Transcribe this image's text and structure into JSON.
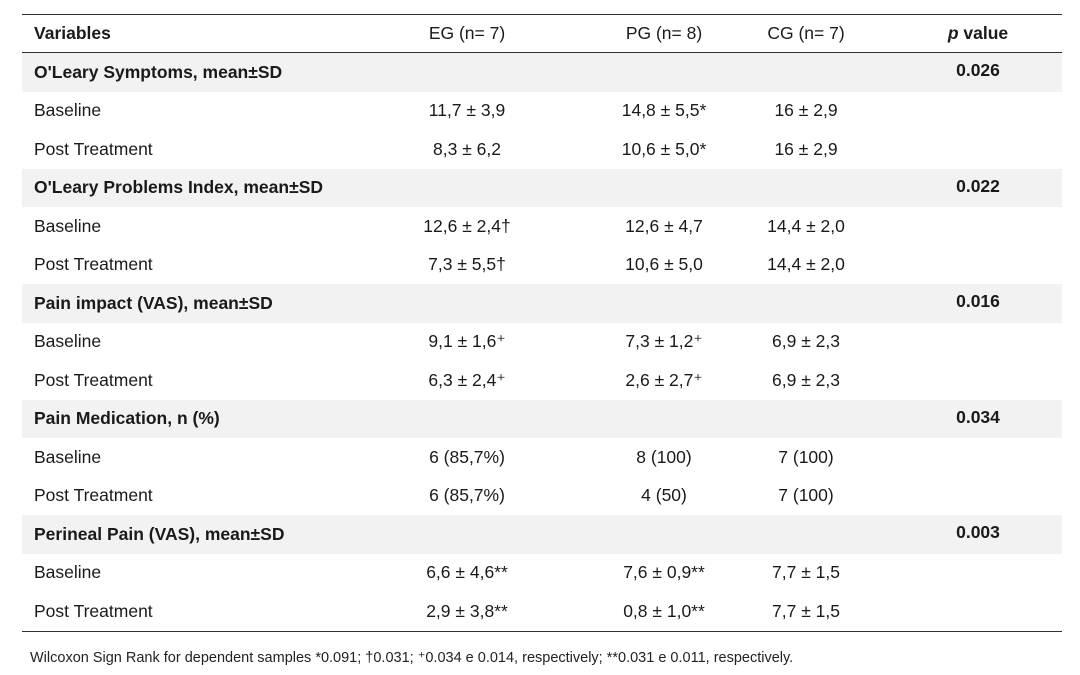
{
  "table": {
    "headers": {
      "variables": "Variables",
      "eg": "EG (n= 7)",
      "pg": "PG (n= 8)",
      "cg": "CG (n= 7)",
      "p_italic": "p",
      "p_rest": " value"
    },
    "sections": [
      {
        "title": "O'Leary Symptoms,  mean±SD",
        "p": "0.026",
        "rows": [
          {
            "label": "Baseline",
            "eg": "11,7 ± 3,9",
            "pg": "14,8 ± 5,5*",
            "cg": "16 ± 2,9"
          },
          {
            "label": "Post Treatment",
            "eg": "8,3 ± 6,2",
            "pg": "10,6 ± 5,0*",
            "cg": "16 ± 2,9"
          }
        ]
      },
      {
        "title": "O'Leary Problems Index, mean±SD",
        "p": "0.022",
        "rows": [
          {
            "label": "Baseline",
            "eg": "12,6 ± 2,4†",
            "pg": "12,6 ± 4,7",
            "cg": "14,4 ± 2,0"
          },
          {
            "label": "Post Treatment",
            "eg": "7,3 ± 5,5†",
            "pg": "10,6 ± 5,0",
            "cg": "14,4 ± 2,0"
          }
        ]
      },
      {
        "title": "Pain impact (VAS),  mean±SD",
        "p": "0.016",
        "rows": [
          {
            "label": "Baseline",
            "eg": "9,1 ± 1,6⁺",
            "pg": "7,3 ± 1,2⁺",
            "cg": "6,9 ± 2,3"
          },
          {
            "label": "Post Treatment",
            "eg": "6,3 ± 2,4⁺",
            "pg": "2,6 ± 2,7⁺",
            "cg": "6,9 ± 2,3"
          }
        ]
      },
      {
        "title": "Pain Medication, n (%)",
        "p": "0.034",
        "rows": [
          {
            "label": "Baseline",
            "eg": "6 (85,7%)",
            "pg": "8 (100)",
            "cg": "7 (100)"
          },
          {
            "label": "Post Treatment",
            "eg": "6 (85,7%)",
            "pg": "4 (50)",
            "cg": "7 (100)"
          }
        ]
      },
      {
        "title": "Perineal Pain (VAS), mean±SD",
        "p": "0.003",
        "rows": [
          {
            "label": "Baseline",
            "eg": "6,6 ± 4,6**",
            "pg": "7,6 ± 0,9**",
            "cg": "7,7 ± 1,5"
          },
          {
            "label": "Post Treatment",
            "eg": "2,9 ± 3,8**",
            "pg": "0,8 ± 1,0**",
            "cg": "7,7 ± 1,5"
          }
        ]
      }
    ]
  },
  "footnote": "Wilcoxon Sign Rank for dependent samples *0.091; †0.031; ⁺0.034 e 0.014, respectively; **0.031 e 0.011, respectively."
}
